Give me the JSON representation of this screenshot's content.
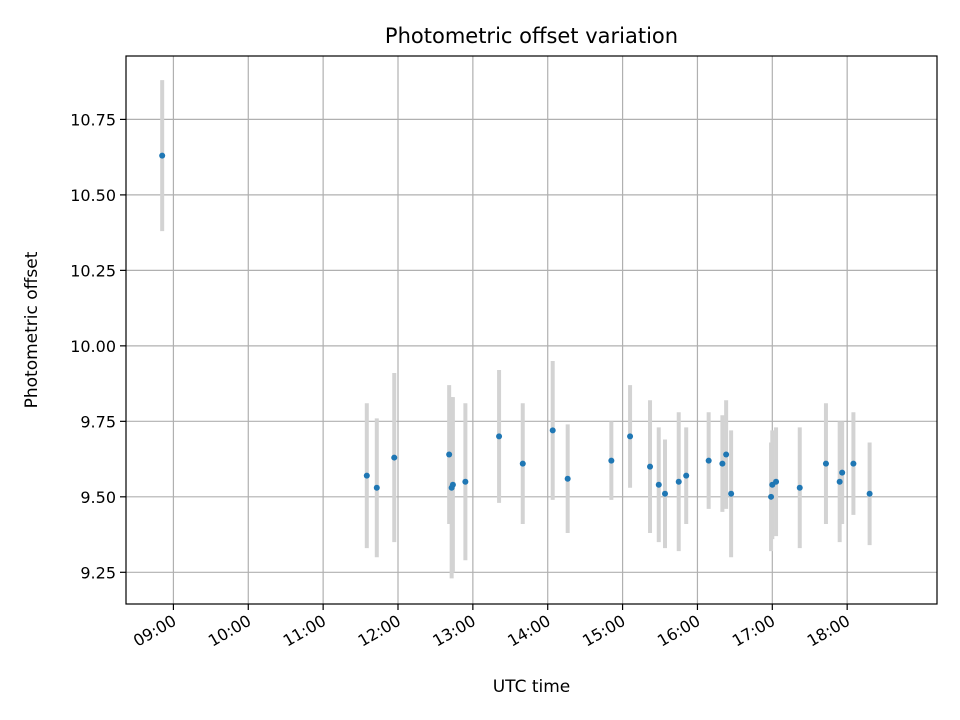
{
  "chart_data": {
    "type": "scatter",
    "title": "Photometric offset variation",
    "xlabel": "UTC time",
    "ylabel": "Photometric offset",
    "x_unit": "UTC time (HH:MM)",
    "xlim": [
      "08:22",
      "19:12"
    ],
    "ylim": [
      9.145,
      10.96
    ],
    "x_ticks": [
      "09:00",
      "10:00",
      "11:00",
      "12:00",
      "13:00",
      "14:00",
      "15:00",
      "16:00",
      "17:00",
      "18:00"
    ],
    "y_ticks": [
      "9.25",
      "9.50",
      "9.75",
      "10.00",
      "10.25",
      "10.50",
      "10.75"
    ],
    "grid": true,
    "point_color": "#1f77b4",
    "errorbar_color": "#d3d3d3",
    "points": [
      {
        "x": "08:51",
        "y": 10.63,
        "yerr": 0.25
      },
      {
        "x": "11:35",
        "y": 9.57,
        "yerr": 0.24
      },
      {
        "x": "11:43",
        "y": 9.53,
        "yerr": 0.23
      },
      {
        "x": "11:57",
        "y": 9.63,
        "yerr": 0.28
      },
      {
        "x": "12:41",
        "y": 9.64,
        "yerr": 0.23
      },
      {
        "x": "12:43",
        "y": 9.53,
        "yerr": 0.3
      },
      {
        "x": "12:44",
        "y": 9.54,
        "yerr": 0.29
      },
      {
        "x": "12:54",
        "y": 9.55,
        "yerr": 0.26
      },
      {
        "x": "13:21",
        "y": 9.7,
        "yerr": 0.22
      },
      {
        "x": "13:40",
        "y": 9.61,
        "yerr": 0.2
      },
      {
        "x": "14:04",
        "y": 9.72,
        "yerr": 0.23
      },
      {
        "x": "14:16",
        "y": 9.56,
        "yerr": 0.18
      },
      {
        "x": "14:51",
        "y": 9.62,
        "yerr": 0.13
      },
      {
        "x": "15:06",
        "y": 9.7,
        "yerr": 0.17
      },
      {
        "x": "15:22",
        "y": 9.6,
        "yerr": 0.22
      },
      {
        "x": "15:29",
        "y": 9.54,
        "yerr": 0.19
      },
      {
        "x": "15:34",
        "y": 9.51,
        "yerr": 0.18
      },
      {
        "x": "15:45",
        "y": 9.55,
        "yerr": 0.23
      },
      {
        "x": "15:51",
        "y": 9.57,
        "yerr": 0.16
      },
      {
        "x": "16:09",
        "y": 9.62,
        "yerr": 0.16
      },
      {
        "x": "16:20",
        "y": 9.61,
        "yerr": 0.16
      },
      {
        "x": "16:23",
        "y": 9.64,
        "yerr": 0.18
      },
      {
        "x": "16:27",
        "y": 9.51,
        "yerr": 0.21
      },
      {
        "x": "16:59",
        "y": 9.5,
        "yerr": 0.18
      },
      {
        "x": "17:00",
        "y": 9.54,
        "yerr": 0.18
      },
      {
        "x": "17:03",
        "y": 9.55,
        "yerr": 0.18
      },
      {
        "x": "17:22",
        "y": 9.53,
        "yerr": 0.2
      },
      {
        "x": "17:43",
        "y": 9.61,
        "yerr": 0.2
      },
      {
        "x": "17:54",
        "y": 9.55,
        "yerr": 0.2
      },
      {
        "x": "17:56",
        "y": 9.58,
        "yerr": 0.17
      },
      {
        "x": "18:05",
        "y": 9.61,
        "yerr": 0.17
      },
      {
        "x": "18:18",
        "y": 9.51,
        "yerr": 0.17
      }
    ]
  }
}
